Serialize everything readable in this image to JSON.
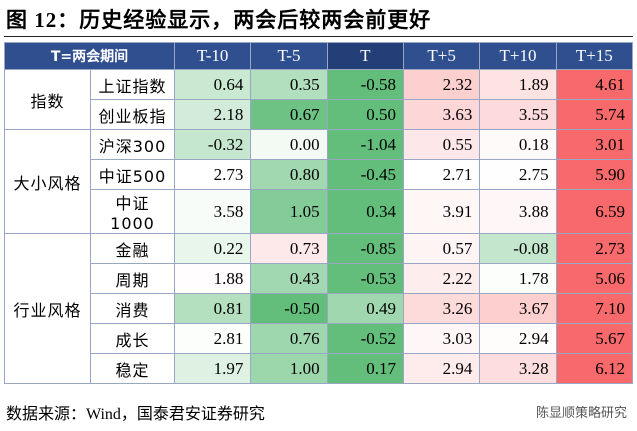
{
  "title": "图 12：历史经验显示，两会后较两会前更好",
  "table": {
    "header": [
      "T=两会期间",
      "T-10",
      "T-5",
      "T",
      "T+5",
      "T+10",
      "T+15"
    ],
    "groups": [
      {
        "label": "指数",
        "rows": [
          {
            "label": "上证指数",
            "values": [
              "0.64",
              "0.35",
              "-0.58",
              "2.32",
              "1.89",
              "4.61"
            ]
          },
          {
            "label": "创业板指",
            "values": [
              "2.18",
              "0.67",
              "0.50",
              "3.63",
              "3.55",
              "5.74"
            ]
          }
        ]
      },
      {
        "label": "大小风格",
        "rows": [
          {
            "label": "沪深300",
            "values": [
              "-0.32",
              "0.00",
              "-1.04",
              "0.55",
              "0.18",
              "3.01"
            ]
          },
          {
            "label": "中证500",
            "values": [
              "2.73",
              "0.80",
              "-0.45",
              "2.71",
              "2.75",
              "5.90"
            ]
          },
          {
            "label": "中证1000",
            "values": [
              "3.58",
              "1.05",
              "0.34",
              "3.91",
              "3.88",
              "6.59"
            ]
          }
        ]
      },
      {
        "label": "行业风格",
        "rows": [
          {
            "label": "金融",
            "values": [
              "0.22",
              "0.73",
              "-0.85",
              "0.57",
              "-0.08",
              "2.73"
            ]
          },
          {
            "label": "周期",
            "values": [
              "1.88",
              "0.43",
              "-0.53",
              "2.22",
              "1.78",
              "5.06"
            ]
          },
          {
            "label": "消费",
            "values": [
              "0.81",
              "-0.50",
              "0.49",
              "3.26",
              "3.67",
              "7.10"
            ]
          },
          {
            "label": "成长",
            "values": [
              "2.81",
              "0.76",
              "-0.52",
              "3.03",
              "2.94",
              "5.67"
            ]
          },
          {
            "label": "稳定",
            "values": [
              "1.97",
              "1.00",
              "0.17",
              "2.94",
              "3.28",
              "6.12"
            ]
          }
        ]
      }
    ]
  },
  "source": "数据来源：Wind，国泰君安证券研究",
  "watermark": "陈显顺策略研究"
}
